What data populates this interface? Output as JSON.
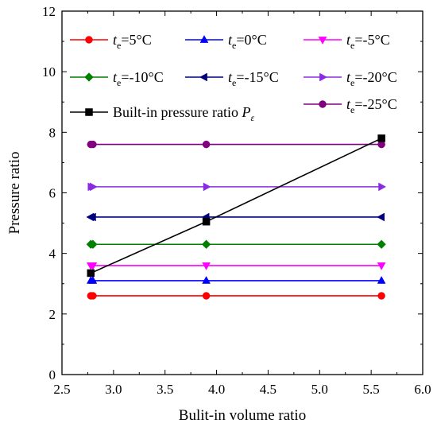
{
  "chart_data": {
    "type": "line",
    "xlabel": "Bulit-in volume ratio",
    "ylabel": "Pressure ratio",
    "xlim": [
      2.5,
      6.0
    ],
    "ylim": [
      0,
      12
    ],
    "xticks": [
      "2.5",
      "3.0",
      "3.5",
      "4.0",
      "4.5",
      "5.0",
      "5.5",
      "6.0"
    ],
    "yticks": [
      "0",
      "2",
      "4",
      "6",
      "8",
      "10",
      "12"
    ],
    "grid": false,
    "legend_position": "top",
    "series": [
      {
        "name": "te=5°C",
        "label_main": "t",
        "label_sub": "e",
        "label_rest": "=5°C",
        "color": "#ff0000",
        "marker": "circle",
        "x": [
          2.78,
          2.8,
          3.9,
          5.6
        ],
        "y": [
          2.6,
          2.6,
          2.6,
          2.6
        ]
      },
      {
        "name": "te=0°C",
        "label_main": "t",
        "label_sub": "e",
        "label_rest": "=0°C",
        "color": "#0000ff",
        "marker": "triangle-up",
        "x": [
          2.78,
          2.8,
          3.9,
          5.6
        ],
        "y": [
          3.1,
          3.1,
          3.1,
          3.1
        ]
      },
      {
        "name": "te=-5°C",
        "label_main": "t",
        "label_sub": "e",
        "label_rest": "=-5°C",
        "color": "#ff00ff",
        "marker": "triangle-down",
        "x": [
          2.78,
          2.8,
          3.9,
          5.6
        ],
        "y": [
          3.6,
          3.6,
          3.6,
          3.6
        ]
      },
      {
        "name": "te=-10°C",
        "label_main": "t",
        "label_sub": "e",
        "label_rest": "=-10°C",
        "color": "#008000",
        "marker": "diamond",
        "x": [
          2.78,
          2.8,
          3.9,
          5.6
        ],
        "y": [
          4.3,
          4.3,
          4.3,
          4.3
        ]
      },
      {
        "name": "te=-15°C",
        "label_main": "t",
        "label_sub": "e",
        "label_rest": "=-15°C",
        "color": "#000080",
        "marker": "triangle-left",
        "x": [
          2.78,
          2.8,
          3.9,
          5.6
        ],
        "y": [
          5.2,
          5.2,
          5.2,
          5.2
        ]
      },
      {
        "name": "te=-20°C",
        "label_main": "t",
        "label_sub": "e",
        "label_rest": "=-20°C",
        "color": "#8a2be2",
        "marker": "triangle-right",
        "x": [
          2.78,
          2.8,
          3.9,
          5.6
        ],
        "y": [
          6.2,
          6.2,
          6.2,
          6.2
        ]
      },
      {
        "name": "te=-25°C",
        "label_main": "t",
        "label_sub": "e",
        "label_rest": "=-25°C",
        "color": "#800080",
        "marker": "circle",
        "x": [
          2.78,
          2.8,
          3.9,
          5.6
        ],
        "y": [
          7.6,
          7.6,
          7.6,
          7.6
        ]
      },
      {
        "name": "Built-in pressure ratio Pε",
        "label_main": "Built-in pressure ratio ",
        "label_italic": "P",
        "label_sub": "ε",
        "label_rest": "",
        "color": "#000000",
        "marker": "square",
        "x": [
          2.78,
          3.9,
          5.6
        ],
        "y": [
          3.35,
          5.05,
          7.8
        ]
      }
    ]
  }
}
